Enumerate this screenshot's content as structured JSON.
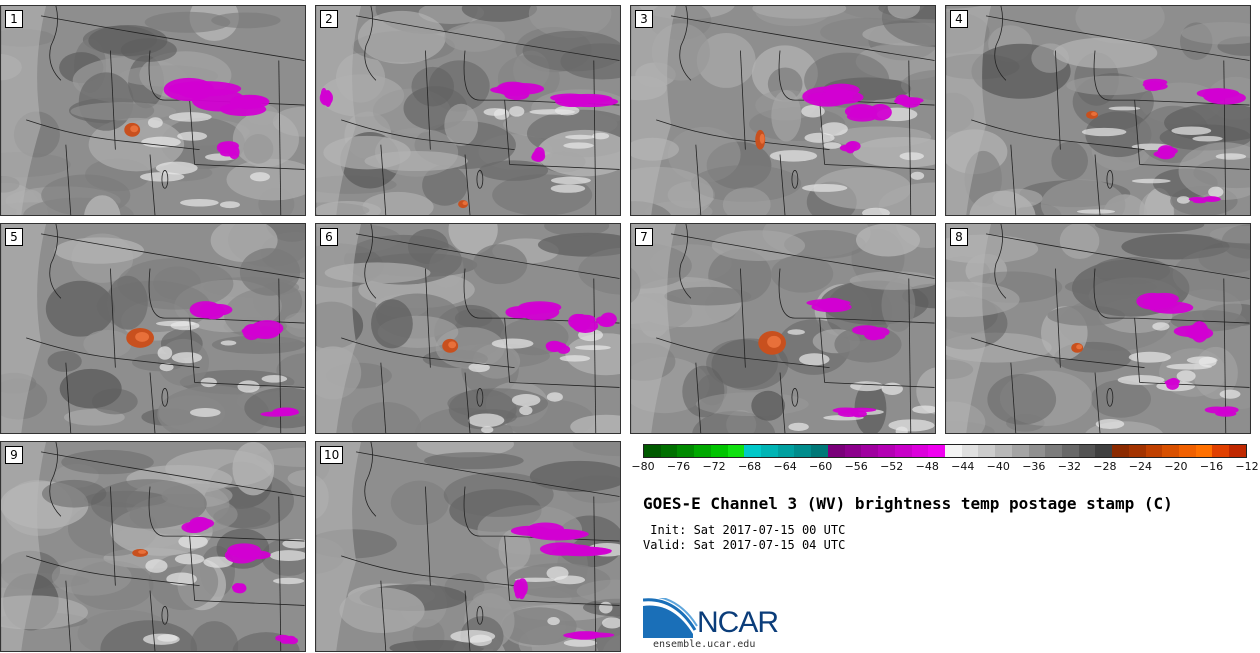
{
  "figure": {
    "title": "GOES-E Channel 3 (WV) brightness temp postage stamp (C)",
    "init": " Init: Sat 2017-07-15 00 UTC",
    "valid": "Valid: Sat 2017-07-15 04 UTC",
    "site": "ensemble.ucar.edu",
    "logo_text": "NCAR"
  },
  "members": [
    {
      "label": "1"
    },
    {
      "label": "2"
    },
    {
      "label": "3"
    },
    {
      "label": "4"
    },
    {
      "label": "5"
    },
    {
      "label": "6"
    },
    {
      "label": "7"
    },
    {
      "label": "8"
    },
    {
      "label": "9"
    },
    {
      "label": "10"
    }
  ],
  "colorbar": {
    "ticks": [
      "−80",
      "−76",
      "−72",
      "−68",
      "−64",
      "−60",
      "−56",
      "−52",
      "−48",
      "−44",
      "−40",
      "−36",
      "−32",
      "−28",
      "−24",
      "−20",
      "−16",
      "−12"
    ],
    "colors": [
      "#005a00",
      "#007000",
      "#008a00",
      "#00a800",
      "#00c400",
      "#10e010",
      "#00c8c8",
      "#00b4b4",
      "#00a0a0",
      "#008c8c",
      "#007878",
      "#7a007a",
      "#8c008c",
      "#a000a0",
      "#b400b4",
      "#c800c8",
      "#dc00dc",
      "#f000f0",
      "#f4f4f4",
      "#e0e0e0",
      "#cccccc",
      "#b8b8b8",
      "#a4a4a4",
      "#909090",
      "#7c7c7c",
      "#686868",
      "#545454",
      "#404040",
      "#8b2a00",
      "#a33300",
      "#c04000",
      "#d85000",
      "#f06000",
      "#ff7000",
      "#e04000",
      "#c02800"
    ]
  },
  "colors": {
    "cold_cloud": "#d200d2",
    "warm_dry": "#c8501e",
    "background_gray": "#8a8a8a"
  }
}
